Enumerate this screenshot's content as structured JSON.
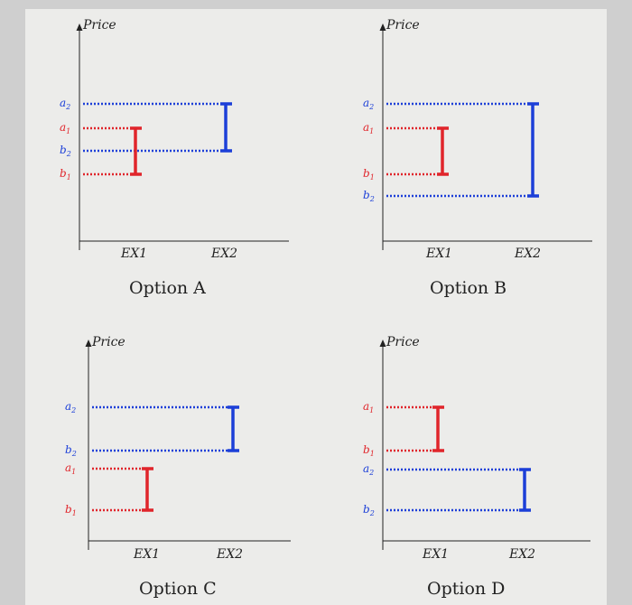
{
  "colors": {
    "red": "#e0252b",
    "blue": "#1c3fd8",
    "axis": "#222222"
  },
  "axis_title": "Price",
  "ex_labels": [
    "EX1",
    "EX2"
  ],
  "panels": [
    {
      "option_label": "Option A",
      "levels": [
        "a2",
        "a1",
        "b2",
        "b1"
      ],
      "level_colors": [
        "blue",
        "red",
        "blue",
        "red"
      ],
      "ex1_range": [
        "a1",
        "b1"
      ],
      "ex2_range": [
        "a2",
        "b2"
      ]
    },
    {
      "option_label": "Option B",
      "levels": [
        "a2",
        "a1",
        "b1",
        "b2"
      ],
      "level_colors": [
        "blue",
        "red",
        "red",
        "blue"
      ],
      "ex1_range": [
        "a1",
        "b1"
      ],
      "ex2_range": [
        "a2",
        "b2"
      ]
    },
    {
      "option_label": "Option C",
      "levels": [
        "a2",
        "b2",
        "a1",
        "b1"
      ],
      "level_colors": [
        "blue",
        "blue",
        "red",
        "red"
      ],
      "ex1_range": [
        "a1",
        "b1"
      ],
      "ex2_range": [
        "a2",
        "b2"
      ]
    },
    {
      "option_label": "Option D",
      "levels": [
        "a1",
        "b1",
        "a2",
        "b2"
      ],
      "level_colors": [
        "red",
        "red",
        "blue",
        "blue"
      ],
      "ex1_range": [
        "a1",
        "b1"
      ],
      "ex2_range": [
        "a2",
        "b2"
      ]
    }
  ]
}
